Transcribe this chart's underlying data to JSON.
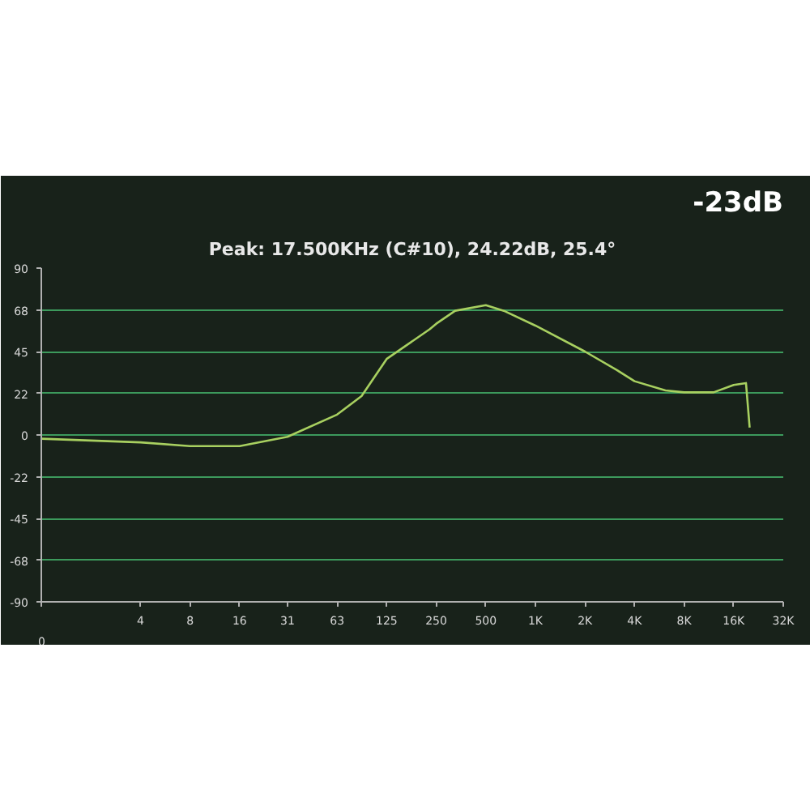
{
  "chart_data": {
    "type": "line",
    "title": "Peak: 17.500KHz (C#10), 24.22dB, 25.4°",
    "annotations": [
      "-23dB",
      "0"
    ],
    "x": [
      1,
      4,
      8,
      16,
      31.25,
      62.5,
      88,
      125,
      228,
      250,
      326,
      500,
      643,
      1000,
      2000,
      3125,
      4000,
      6160,
      8000,
      12080,
      16000,
      19000,
      20000
    ],
    "values": [
      -2,
      -4,
      -6,
      -6,
      -1,
      11,
      21,
      41,
      57,
      60,
      67,
      70,
      67,
      59,
      45,
      35,
      29,
      24,
      23,
      23,
      27,
      28,
      4
    ],
    "color": "#a8d060",
    "log": "x",
    "grid": "y",
    "xlim": [
      1,
      32000
    ],
    "ylim": [
      -90,
      90
    ],
    "xticks": [
      {
        "value": 1,
        "label": null
      },
      4,
      8,
      16,
      {
        "value": 31.25,
        "label": "31"
      },
      {
        "value": 62.5,
        "label": "63"
      },
      125,
      250,
      500,
      {
        "value": 1000,
        "label": "1K"
      },
      {
        "value": 2000,
        "label": "2K"
      },
      {
        "value": 4000,
        "label": "4K"
      },
      {
        "value": 8000,
        "label": "8K"
      },
      {
        "value": 16000,
        "label": "16K"
      },
      {
        "value": 32000,
        "label": "32K"
      }
    ],
    "yticks": [
      90,
      {
        "value": 67.5,
        "label": "68"
      },
      45,
      {
        "value": 22.5,
        "label": "22"
      },
      0,
      {
        "value": -22.5,
        "label": "-22"
      },
      -45,
      {
        "value": -67.5,
        "label": "-68"
      },
      -90
    ]
  }
}
